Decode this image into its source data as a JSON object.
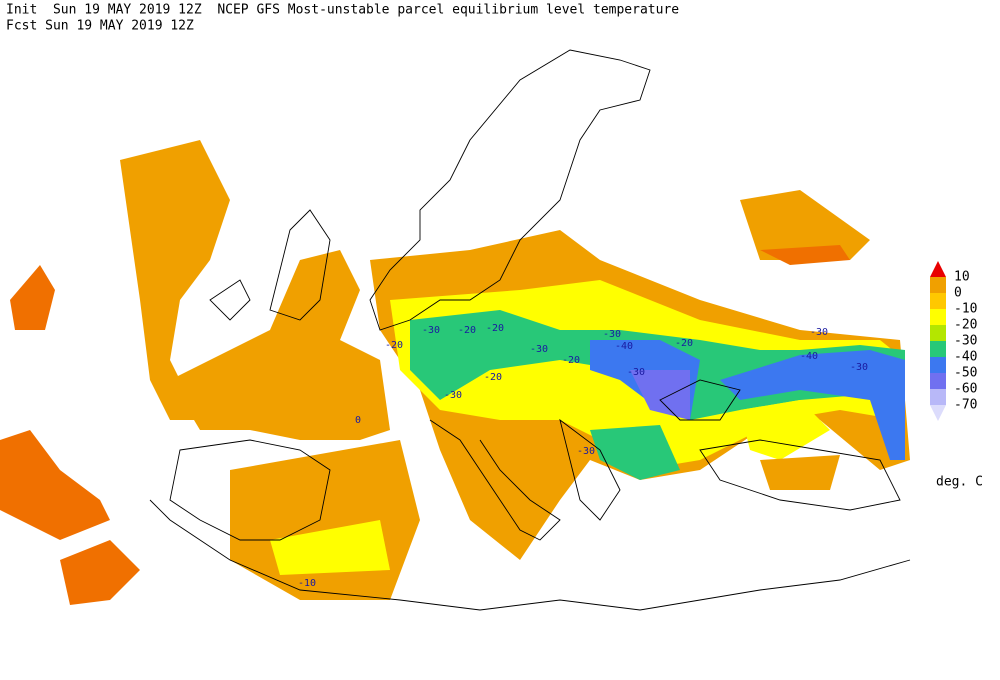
{
  "header": {
    "init": "Init  Sun 19 MAY 2019 12Z  NCEP GFS Most-unstable parcel equilibrium level temperature",
    "fcst": "Fcst Sun 19 MAY 2019 12Z"
  },
  "legend": {
    "levels": [
      10,
      0,
      -10,
      -20,
      -30,
      -40,
      -50,
      -60,
      -70
    ],
    "colors": [
      "#e80000",
      "#f0a000",
      "#ffc800",
      "#ffff00",
      "#b4e600",
      "#28c878",
      "#3c78f0",
      "#7070f0",
      "#b8b8f8",
      "#dcdcfc"
    ],
    "unit": "deg. C"
  },
  "contour_labels": [
    "-30",
    "-20",
    "-20",
    "-30",
    "-20",
    "-30",
    "-40",
    "-20",
    "-30",
    "-40",
    "-30",
    "-20",
    "-30",
    "-30",
    "-30",
    "0",
    "-10",
    "-20"
  ]
}
